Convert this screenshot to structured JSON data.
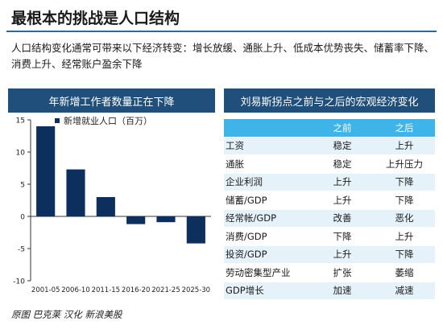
{
  "page": {
    "title": "最根本的挑战是人口结构",
    "intro": "人口结构变化通常可带来以下经济转变：增长放缓、通胀上升、低成本优势丧失、储蓄率下降、消费上升、经常账户盈余下降",
    "source": "原图 巴克莱 汉化 新浪美股"
  },
  "left_panel": {
    "header": "年新增工作者数量正在下降"
  },
  "right_panel": {
    "header": "刘易斯拐点之前与之后的宏观经济变化"
  },
  "colors": {
    "accent": "#1f6ea8",
    "header_bg": "#1f4f7a",
    "table_head": "#3fb4e8",
    "bar": "#0c2f5e"
  },
  "chart_data": {
    "type": "bar",
    "title": "年新增工作者数量正在下降",
    "categories": [
      "2001-05",
      "2006-10",
      "2011-15",
      "2016-20",
      "2021-25",
      "2025-30"
    ],
    "series": [
      {
        "name": "新增就业人口（百万）",
        "values": [
          14.0,
          7.3,
          3.0,
          -1.2,
          -0.9,
          -4.2
        ]
      }
    ],
    "ylim": [
      -10,
      15
    ],
    "yticks": [
      15,
      10,
      5,
      0,
      -5,
      -10
    ],
    "legend": "top-left",
    "grid": false
  },
  "table": {
    "columns": [
      "",
      "之前",
      "之后"
    ],
    "rows": [
      {
        "label": "工资",
        "before": "稳定",
        "after": "上升"
      },
      {
        "label": "通胀",
        "before": "稳定",
        "after": "上升压力"
      },
      {
        "label": "企业利润",
        "before": "上升",
        "after": "下降"
      },
      {
        "label": "储蓄/GDP",
        "before": "上升",
        "after": "下降"
      },
      {
        "label": "经常帐/GDP",
        "before": "改善",
        "after": "恶化"
      },
      {
        "label": "消费/GDP",
        "before": "下降",
        "after": "上升"
      },
      {
        "label": "投资/GDP",
        "before": "上升",
        "after": "下降"
      },
      {
        "label": "劳动密集型产业",
        "before": "扩张",
        "after": "萎缩"
      },
      {
        "label": "GDP增长",
        "before": "加速",
        "after": "减速"
      }
    ]
  }
}
